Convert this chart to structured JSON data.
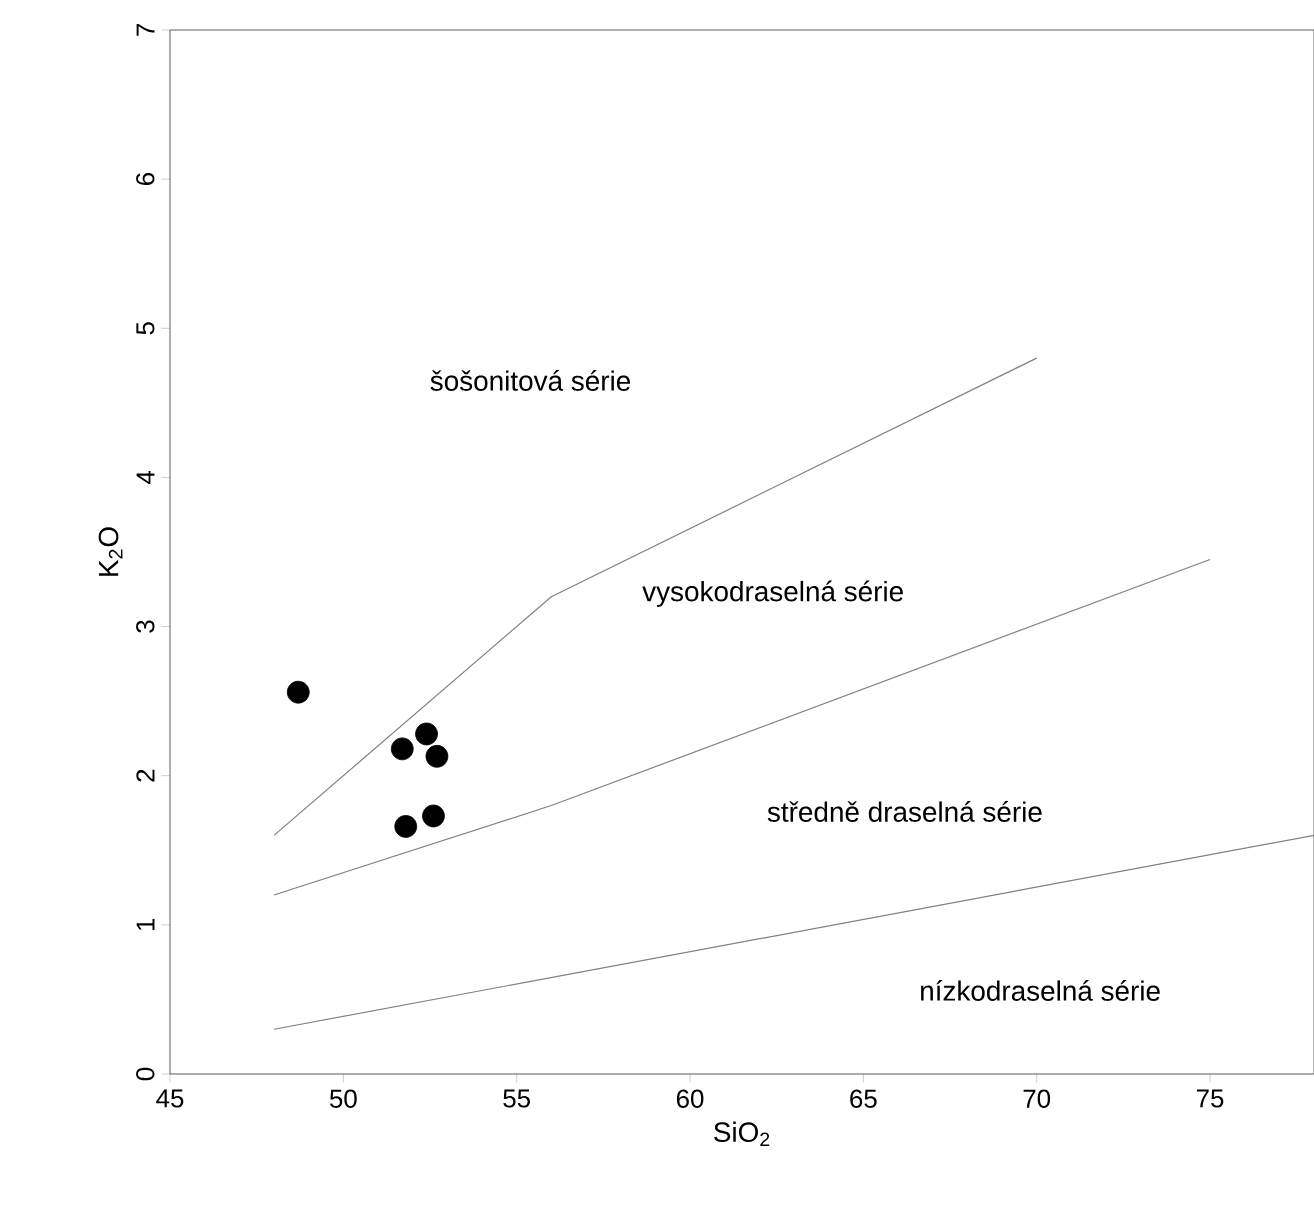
{
  "chart_data": {
    "type": "scatter",
    "xlabel": "SiO$_{2}$",
    "ylabel": "K$_{2}$O",
    "xlim": [
      45,
      78
    ],
    "ylim": [
      0,
      7
    ],
    "xticks": [
      45,
      50,
      55,
      60,
      65,
      70,
      75
    ],
    "yticks": [
      0,
      1,
      2,
      3,
      4,
      5,
      6,
      7
    ],
    "annotations": [
      "šošonitová série",
      "vysokodraselná série",
      "středně draselná série",
      "nízkodraselná série"
    ],
    "series": [
      {
        "color": "#000000",
        "marker": "circle",
        "x": [
          48.7,
          51.7,
          52.4,
          52.7,
          51.8,
          52.6
        ],
        "values": [
          2.56,
          2.18,
          2.28,
          2.13,
          1.66,
          1.73
        ]
      },
      {
        "type": "line",
        "color": "#808080",
        "marker": "none",
        "x": [
          48,
          56,
          70
        ],
        "values": [
          1.6,
          3.2,
          4.8
        ]
      },
      {
        "type": "line",
        "color": "#808080",
        "marker": "none",
        "x": [
          48,
          56,
          75
        ],
        "values": [
          1.2,
          1.8,
          3.45
        ]
      },
      {
        "type": "line",
        "color": "#808080",
        "marker": "none",
        "x": [
          48,
          78
        ],
        "values": [
          0.3,
          1.6
        ]
      }
    ]
  }
}
